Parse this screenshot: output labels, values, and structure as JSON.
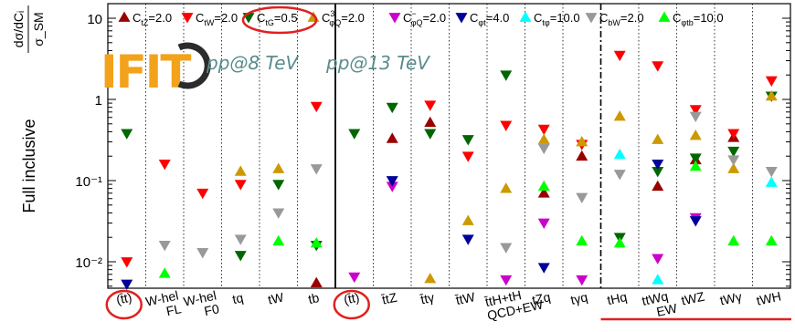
{
  "chart_data": {
    "type": "scatter",
    "y_scale": "log",
    "ylim": [
      0.005,
      15
    ],
    "yticks": [
      {
        "value": 10,
        "label": "10"
      },
      {
        "value": 1,
        "label": "1"
      },
      {
        "value": 0.1,
        "label": "10⁻¹"
      },
      {
        "value": 0.01,
        "label": "10⁻²"
      }
    ],
    "ylabel": "Full inclusive",
    "ylabel_frac": {
      "num": "dσ/dCᵢ",
      "den": "σ_SM"
    },
    "energy_labels": [
      "pp@8 TeV",
      "pp@13 TeV"
    ],
    "logo_text": "IFIT",
    "categories": [
      {
        "label": "(t̄t)",
        "circled": true
      },
      {
        "label": "W-hel FL"
      },
      {
        "label": "W-hel F0"
      },
      {
        "label": "tq"
      },
      {
        "label": "tW"
      },
      {
        "label": "tb"
      },
      {
        "label": "(t̄t)",
        "circled": true
      },
      {
        "label": "t̄tZ"
      },
      {
        "label": "t̄tγ"
      },
      {
        "label": "t̄tW"
      },
      {
        "label": "t̄tH+tH QCD+EW"
      },
      {
        "label": "tZq"
      },
      {
        "label": "tγq"
      },
      {
        "label": "tHq"
      },
      {
        "label": "ttWq EW"
      },
      {
        "label": "tWZ"
      },
      {
        "label": "tWγ"
      },
      {
        "label": "tWH"
      }
    ],
    "series": [
      {
        "name": "C_tZ=2.0",
        "color": "#990000",
        "marker": "up",
        "values": [
          null,
          null,
          null,
          null,
          null,
          0.0055,
          null,
          0.33,
          0.52,
          null,
          null,
          0.07,
          0.2,
          null,
          0.085,
          0.18,
          0.34,
          null
        ]
      },
      {
        "name": "C_tW=2.0",
        "color": "#ff0000",
        "marker": "down",
        "values": [
          0.01,
          0.16,
          0.07,
          0.09,
          null,
          0.82,
          null,
          null,
          0.85,
          0.2,
          0.48,
          0.43,
          0.28,
          3.5,
          2.6,
          0.75,
          0.38,
          1.7
        ]
      },
      {
        "name": "C_tG=0.5",
        "color": "#006600",
        "marker": "down",
        "values": [
          0.38,
          null,
          null,
          0.012,
          0.09,
          0.016,
          0.38,
          0.8,
          0.38,
          0.32,
          2.0,
          null,
          null,
          0.02,
          0.13,
          0.19,
          0.23,
          1.1
        ]
      },
      {
        "name": "C_φQ^3=2.0",
        "color": "#cc9900",
        "marker": "up",
        "values": [
          null,
          null,
          null,
          0.13,
          0.14,
          null,
          null,
          null,
          0.0062,
          0.032,
          0.08,
          0.32,
          0.3,
          0.62,
          0.32,
          0.36,
          0.14,
          1.1
        ]
      },
      {
        "name": "C_φQ^−=2.0",
        "color": "#cc00cc",
        "marker": "down",
        "values": [
          null,
          null,
          null,
          null,
          null,
          null,
          0.0065,
          0.085,
          null,
          null,
          0.006,
          0.03,
          0.006,
          null,
          0.011,
          0.035,
          null,
          null
        ]
      },
      {
        "name": "C_φt=4.0",
        "color": "#000099",
        "marker": "down",
        "values": [
          0.0053,
          null,
          null,
          null,
          null,
          null,
          null,
          0.1,
          null,
          0.019,
          null,
          0.0085,
          null,
          null,
          0.16,
          0.032,
          null,
          null
        ]
      },
      {
        "name": "C_tφ=10.0",
        "color": "#00ffff",
        "marker": "up",
        "values": [
          null,
          null,
          null,
          null,
          null,
          null,
          null,
          null,
          null,
          null,
          null,
          null,
          null,
          0.21,
          0.006,
          null,
          null,
          0.095
        ]
      },
      {
        "name": "C_bW=2.0",
        "color": "#999999",
        "marker": "down",
        "values": [
          null,
          0.016,
          0.013,
          0.019,
          0.04,
          0.14,
          null,
          null,
          null,
          null,
          0.015,
          0.25,
          0.062,
          0.12,
          null,
          0.62,
          0.18,
          0.13
        ]
      },
      {
        "name": "C_φtb=10.0",
        "color": "#00ff00",
        "marker": "up",
        "values": [
          null,
          0.0072,
          null,
          null,
          0.018,
          0.017,
          null,
          null,
          null,
          null,
          null,
          0.085,
          0.018,
          0.017,
          null,
          0.15,
          0.018,
          0.018
        ]
      }
    ],
    "divider_lines": {
      "solid_after": 5,
      "dashdot_after": 12
    },
    "annotations": [
      {
        "type": "circle",
        "target": "legend C_tG=0.5"
      },
      {
        "type": "circle",
        "target": "category 0"
      },
      {
        "type": "circle",
        "target": "category 6"
      },
      {
        "type": "underline",
        "target": "categories 13-17"
      }
    ],
    "grid": false,
    "legend_placement": "top",
    "colors": {
      "annotation": "#e02020",
      "energy_text": "#5a8c8c",
      "logo_orange": "#f3a21b",
      "logo_dark": "#2b2b2b"
    }
  }
}
